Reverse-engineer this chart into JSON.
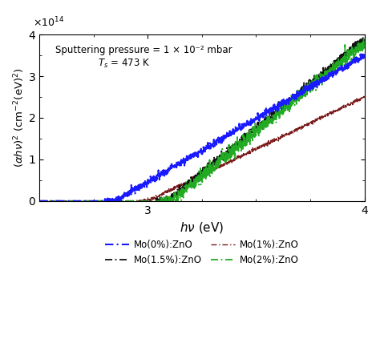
{
  "xlabel": "$h\\nu$ (eV)",
  "ylabel": "$(\\alpha h\\nu)^2$ (cm$^{-2}$(eV)$^2$)",
  "xlim": [
    2.5,
    4.0
  ],
  "ylim": [
    0.0,
    4.0
  ],
  "xticks": [
    3,
    4
  ],
  "yticks": [
    0.0,
    1.0,
    2.0,
    3.0,
    4.0
  ],
  "annotation1": "Sputtering pressure = 1 × 10⁻² mbar",
  "annotation2": "$T_s$ = 473 K",
  "colors": [
    "#1a1aff",
    "#7a1a1a",
    "#111111",
    "#22aa22"
  ],
  "legend_labels": [
    "Mo(0%):ZnO",
    "Mo(1%):ZnO",
    "Mo(1.5%):ZnO",
    "Mo(2%):ZnO"
  ],
  "background_color": "#ffffff"
}
